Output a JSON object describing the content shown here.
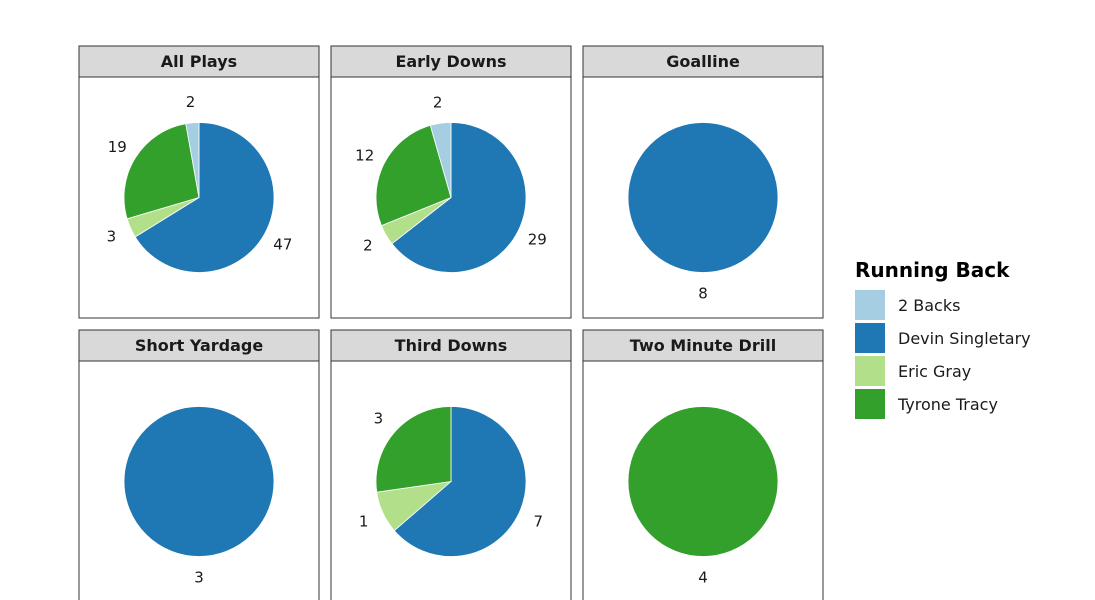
{
  "chart_data": {
    "type": "pie",
    "title": "",
    "legend": {
      "title": "Running Back",
      "placement": "right",
      "entries": [
        {
          "name": "2 Backs",
          "color": "#A6CEE3"
        },
        {
          "name": "Devin Singletary",
          "color": "#1F78B4"
        },
        {
          "name": "Eric Gray",
          "color": "#B2DF8A"
        },
        {
          "name": "Tyrone Tracy",
          "color": "#33A02C"
        }
      ]
    },
    "panels": [
      {
        "name": "All Plays",
        "slices": [
          {
            "label": "Devin Singletary",
            "value": 47
          },
          {
            "label": "Eric Gray",
            "value": 3
          },
          {
            "label": "Tyrone Tracy",
            "value": 19
          },
          {
            "label": "2 Backs",
            "value": 2
          }
        ]
      },
      {
        "name": "Early Downs",
        "slices": [
          {
            "label": "Devin Singletary",
            "value": 29
          },
          {
            "label": "Eric Gray",
            "value": 2
          },
          {
            "label": "Tyrone Tracy",
            "value": 12
          },
          {
            "label": "2 Backs",
            "value": 2
          }
        ]
      },
      {
        "name": "Goalline",
        "slices": [
          {
            "label": "Devin Singletary",
            "value": 8
          }
        ]
      },
      {
        "name": "Short Yardage",
        "slices": [
          {
            "label": "Devin Singletary",
            "value": 3
          }
        ]
      },
      {
        "name": "Third Downs",
        "slices": [
          {
            "label": "Devin Singletary",
            "value": 7
          },
          {
            "label": "Eric Gray",
            "value": 1
          },
          {
            "label": "Tyrone Tracy",
            "value": 3
          }
        ]
      },
      {
        "name": "Two Minute Drill",
        "slices": [
          {
            "label": "Tyrone Tracy",
            "value": 4
          }
        ]
      }
    ]
  }
}
